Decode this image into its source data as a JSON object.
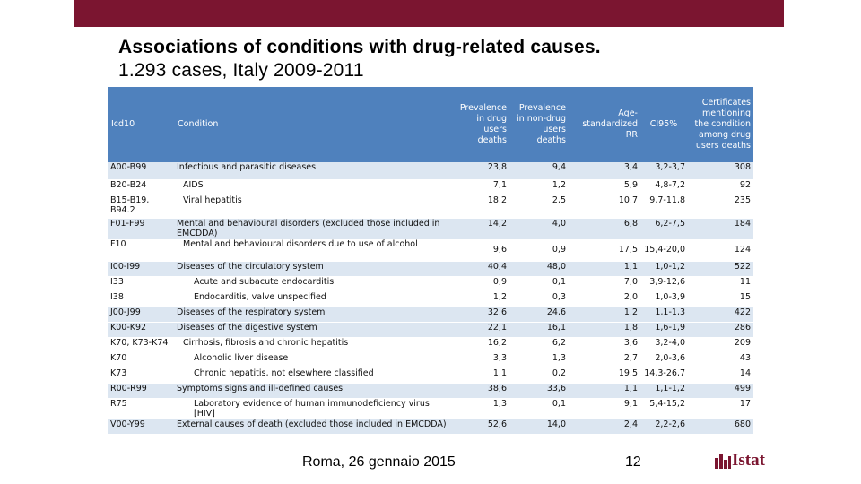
{
  "slide": {
    "title_line1": "Associations of conditions with drug-related causes.",
    "title_line2": "1.293 cases, Italy 2009-2011",
    "footer_date": "Roma, 26 gennaio 2015",
    "page_number": "12",
    "logo_text": "Istat",
    "brand_color": "#7b1530",
    "header_color": "#4f81bd",
    "row_shade_color": "#dce6f1"
  },
  "table": {
    "headers": {
      "code": "Icd10",
      "condition": "Condition",
      "prev_drug": "Prevalence in drug users deaths",
      "prev_nondrug": "Prevalence in non-drug users deaths",
      "rr": "Age-standardized RR",
      "ci": "CI95%",
      "cert": "Certificates mentioning the condition among drug users deaths"
    },
    "rows": [
      {
        "code": "A00-B99",
        "condition": "Infectious and parasitic diseases",
        "prev_drug": "23,8",
        "prev_nondrug": "9,4",
        "rr": "3,4",
        "ci": "3,2-3,7",
        "cert": "308"
      },
      {
        "code": "B20-B24",
        "condition": "AIDS",
        "prev_drug": "7,1",
        "prev_nondrug": "1,2",
        "rr": "5,9",
        "ci": "4,8-7,2",
        "cert": "92"
      },
      {
        "code": "B15-B19, B94.2",
        "condition": "Viral hepatitis",
        "prev_drug": "18,2",
        "prev_nondrug": "2,5",
        "rr": "10,7",
        "ci": "9,7-11,8",
        "cert": "235"
      },
      {
        "code": "F01-F99",
        "condition": "Mental and behavioural disorders (excluded those included in EMCDDA)",
        "prev_drug": "14,2",
        "prev_nondrug": "4,0",
        "rr": "6,8",
        "ci": "6,2-7,5",
        "cert": "184"
      },
      {
        "code": "F10",
        "condition": "Mental and behavioural disorders due to use of alcohol",
        "prev_drug": "9,6",
        "prev_nondrug": "0,9",
        "rr": "17,5",
        "ci": "15,4-20,0",
        "cert": "124"
      },
      {
        "code": "I00-I99",
        "condition": "Diseases of the circulatory system",
        "prev_drug": "40,4",
        "prev_nondrug": "48,0",
        "rr": "1,1",
        "ci": "1,0-1,2",
        "cert": "522"
      },
      {
        "code": "I33",
        "condition": "Acute and subacute endocarditis",
        "prev_drug": "0,9",
        "prev_nondrug": "0,1",
        "rr": "7,0",
        "ci": "3,9-12,6",
        "cert": "11"
      },
      {
        "code": "I38",
        "condition": "Endocarditis, valve unspecified",
        "prev_drug": "1,2",
        "prev_nondrug": "0,3",
        "rr": "2,0",
        "ci": "1,0-3,9",
        "cert": "15"
      },
      {
        "code": "J00-J99",
        "condition": "Diseases of the respiratory system",
        "prev_drug": "32,6",
        "prev_nondrug": "24,6",
        "rr": "1,2",
        "ci": "1,1-1,3",
        "cert": "422"
      },
      {
        "code": "K00-K92",
        "condition": "Diseases of the digestive system",
        "prev_drug": "22,1",
        "prev_nondrug": "16,1",
        "rr": "1,8",
        "ci": "1,6-1,9",
        "cert": "286"
      },
      {
        "code": "K70, K73-K74",
        "condition": "Cirrhosis, fibrosis and chronic hepatitis",
        "prev_drug": "16,2",
        "prev_nondrug": "6,2",
        "rr": "3,6",
        "ci": "3,2-4,0",
        "cert": "209"
      },
      {
        "code": "K70",
        "condition": "Alcoholic liver disease",
        "prev_drug": "3,3",
        "prev_nondrug": "1,3",
        "rr": "2,7",
        "ci": "2,0-3,6",
        "cert": "43"
      },
      {
        "code": "K73",
        "condition": "Chronic hepatitis, not elsewhere classified",
        "prev_drug": "1,1",
        "prev_nondrug": "0,2",
        "rr": "19,5",
        "ci": "14,3-26,7",
        "cert": "14"
      },
      {
        "code": "R00-R99",
        "condition": "Symptoms signs and ill-defined causes",
        "prev_drug": "38,6",
        "prev_nondrug": "33,6",
        "rr": "1,1",
        "ci": "1,1-1,2",
        "cert": "499"
      },
      {
        "code": "R75",
        "condition": "Laboratory evidence of human immunodeficiency virus [HIV]",
        "prev_drug": "1,3",
        "prev_nondrug": "0,1",
        "rr": "9,1",
        "ci": "5,4-15,2",
        "cert": "17"
      },
      {
        "code": "V00-Y99",
        "condition": "External causes of death (excluded those included in EMCDDA)",
        "prev_drug": "52,6",
        "prev_nondrug": "14,0",
        "rr": "2,4",
        "ci": "2,2-2,6",
        "cert": "680"
      }
    ]
  }
}
